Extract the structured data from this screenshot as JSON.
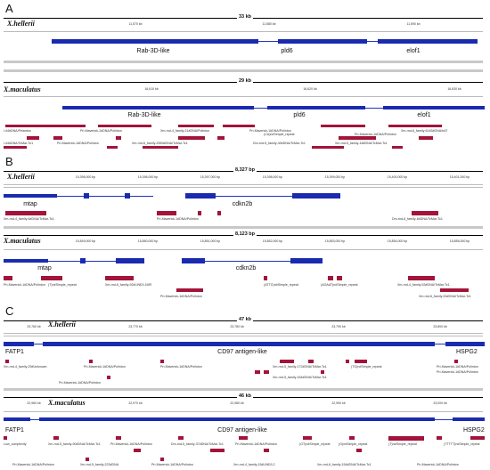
{
  "colors": {
    "gene": "#1a2bb0",
    "repeat": "#a3133a",
    "axis": "#000000"
  },
  "panels": [
    {
      "letter": "A",
      "tracks": [
        {
          "species": "X.hellerii",
          "scale": "33 kb",
          "ticks": [
            "11,570 kb",
            "11,580 kb",
            "11,590 kb"
          ],
          "genes": [
            "Rab-3D-like",
            "pld6",
            "elof1"
          ],
          "repeat_labels": []
        },
        {
          "species": "X.maculatus",
          "scale": "29 kb",
          "ticks": [
            "16,610 kb",
            "16,620 kb",
            "16,630 kb"
          ],
          "genes": [
            "Rab-3D-like",
            "pld6",
            "elof1"
          ],
          "repeat_labels": [
            "l-44#DNA/Pelanton",
            "Pri-Maverick-1#DNA/Polinton",
            "Xm-rnd-4_family-21#DNA/Polinton",
            "Pri-Maverick-1#DNA/Polinton",
            "Xm-rnd-6_family-6145#DNA/hAT",
            "l-44#DNA/TcMar-Tc1",
            "Pri-Maverick-1#DNA/Polinton",
            "Xm-rnd-6_family-2559#DNA/TcMar-Tc1",
            "Dm-rnd-5_family-40#DNA/TcMar-Tc1",
            "Xm-rnd-5_family-18#DNA/TcMar-Tc1",
            "Pri-Maverick-1#DNA/Polinton",
            "(CA)n#Simple_repeat"
          ]
        }
      ]
    },
    {
      "letter": "B",
      "tracks": [
        {
          "species": "X.hellerii",
          "scale": "8,327 bp",
          "ticks": [
            "15,395,000 bp",
            "15,396,000 bp",
            "15,397,000 bp",
            "15,398,000 bp",
            "15,399,000 bp",
            "15,400,000 bp",
            "15,401,000 bp"
          ],
          "genes": [
            "mtap",
            "cdkn2b"
          ],
          "repeat_labels": [
            "Xm-rnd-4_family-6#DNA/TcMar-Tc1",
            "Pri-Maverick-1#DNA/Polinton",
            "Dm-rnd-6_family-6#DNA/TcMar-Tc1"
          ]
        },
        {
          "species": "X.maculatus",
          "scale": "8,123 bp",
          "ticks": [
            "15,849,000 bp",
            "15,850,000 bp",
            "15,851,000 bp",
            "15,852,000 bp",
            "15,853,000 bp",
            "15,854,000 bp",
            "15,855,000 bp"
          ],
          "genes": [
            "mtap",
            "cdkn2b"
          ],
          "repeat_labels": [
            "Pri-Maverick-1#DNA/Polinton",
            "(T)n#Simple_repeat",
            "Xm-rnd-6_family-92#LINE/L1MR",
            "(ATTG)n#Simple_repeat",
            "(AGAAT)n#Simple_repeat",
            "Xm-rnd-4_family-53#DNA/TcMar-Tc1",
            "Pri-Maverick-1#DNA/Polinton",
            "Xm-rnd-6_family-53#DNA/TcMar-Tc1"
          ]
        }
      ]
    },
    {
      "letter": "C",
      "tracks": [
        {
          "species": "X.hellerii",
          "scale": "47 kb",
          "ticks": [
            "23,760 kb",
            "23,770 kb",
            "23,780 kb",
            "23,790 kb",
            "23,800 kb"
          ],
          "genes": [
            "FATP1",
            "CD97 antigen-like",
            "HSPG2"
          ],
          "repeat_labels": [
            "Xm-rnd-4_family-29#Unknown",
            "Pri-Maverick-1#DNA/Polinton",
            "Pri-Maverick-1#DNA/Polinton",
            "Xm-rnd-5_family-172#DNA/TcMar-Tc1",
            "(TG)n#Simple_repeat",
            "Pri-Maverick-1#DNA/Polinton",
            "Pri-Maverick-1#DNA/Polinton",
            "Xm-rnd-5_family-164#DNA/TcMar-Tc1",
            "Pri-Maverick-1#DNA/Polinton"
          ]
        },
        {
          "species": "X.maculatus",
          "scale": "46 kb",
          "ticks": [
            "22,960 kb",
            "22,970 kb",
            "22,980 kb",
            "22,990 kb",
            "23,000 kb"
          ],
          "genes": [
            "FATP1",
            "CD97 antigen-like",
            "HSPG2"
          ],
          "repeat_labels": [
            "Low_complexity",
            "Xm-rnd-5_family-90#DNA/TcMar-Tc1",
            "Pri-Maverick-1#DNA/Polinton",
            "Dm-rnd-5_family-37#DNA/TcMar-Tc1",
            "Pri-Maverick-1#DNA/Polinton",
            "(GT)n#Simple_repeat",
            "(G)n#Simple_repeat",
            "(T)n#Simple_repeat",
            "(TTTTT)n#Simple_repeat",
            "Pri-Maverick-1#DNA/Polinton",
            "Xm-rnd-5_family-223#DNA",
            "Pri-Maverick-1#DNA/Polinton",
            "Xm-rnd-4_family-15#LINE/L2",
            "Xm-rnd-6_family-154#DNA/TcMar-Tc1",
            "Pri-Maverick-1#DNA/Polinton"
          ]
        }
      ]
    }
  ]
}
